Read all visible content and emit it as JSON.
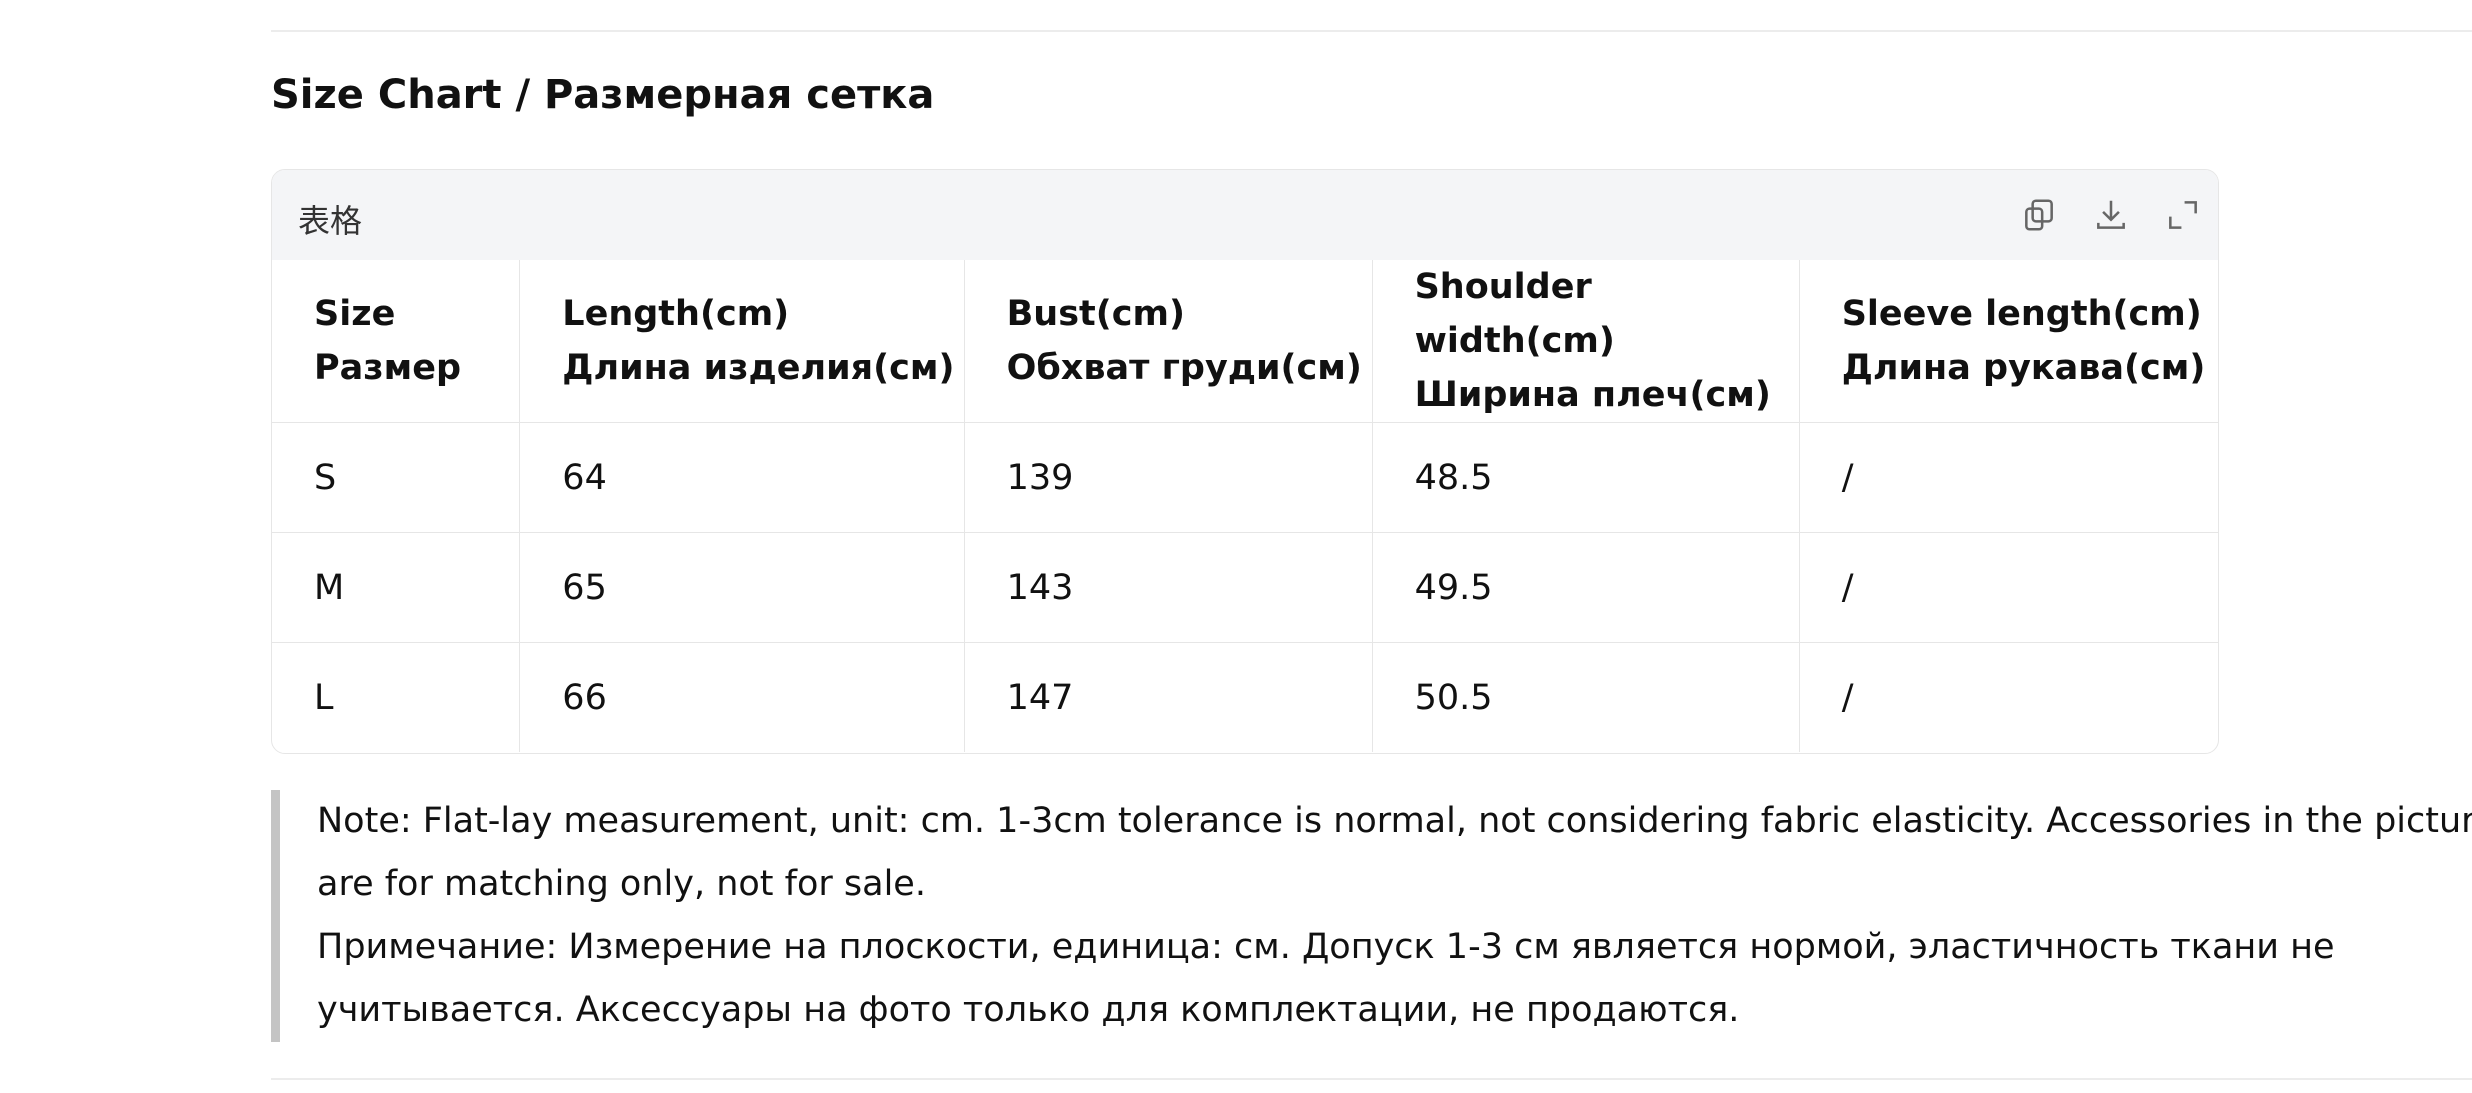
{
  "header": {
    "title": "Size Chart / Размерная сетка"
  },
  "table": {
    "label": "表格",
    "columns": [
      [
        "Size",
        "Размер"
      ],
      [
        "Length(cm)",
        "Длина изделия(см)"
      ],
      [
        "Bust(cm)",
        "Обхват груди(см)"
      ],
      [
        "Shoulder width(cm)",
        "Ширина плеч(см)"
      ],
      [
        "Sleeve length(cm)",
        "Длина рукава(см)"
      ]
    ],
    "rows": [
      [
        "S",
        "64",
        "139",
        "48.5",
        "/"
      ],
      [
        "M",
        "65",
        "143",
        "49.5",
        "/"
      ],
      [
        "L",
        "66",
        "147",
        "50.5",
        "/"
      ]
    ]
  },
  "note": [
    "Note: Flat-lay measurement, unit: cm. 1-3cm tolerance is normal, not considering fabric elasticity. Accessories in the picture are for matching only, not for sale.",
    "Примечание: Измерение на плоскости, единица: см. Допуск 1-3 см является нормой, эластичность ткани не учитывается. Аксессуары на фото только для комплектации, не продаются."
  ]
}
